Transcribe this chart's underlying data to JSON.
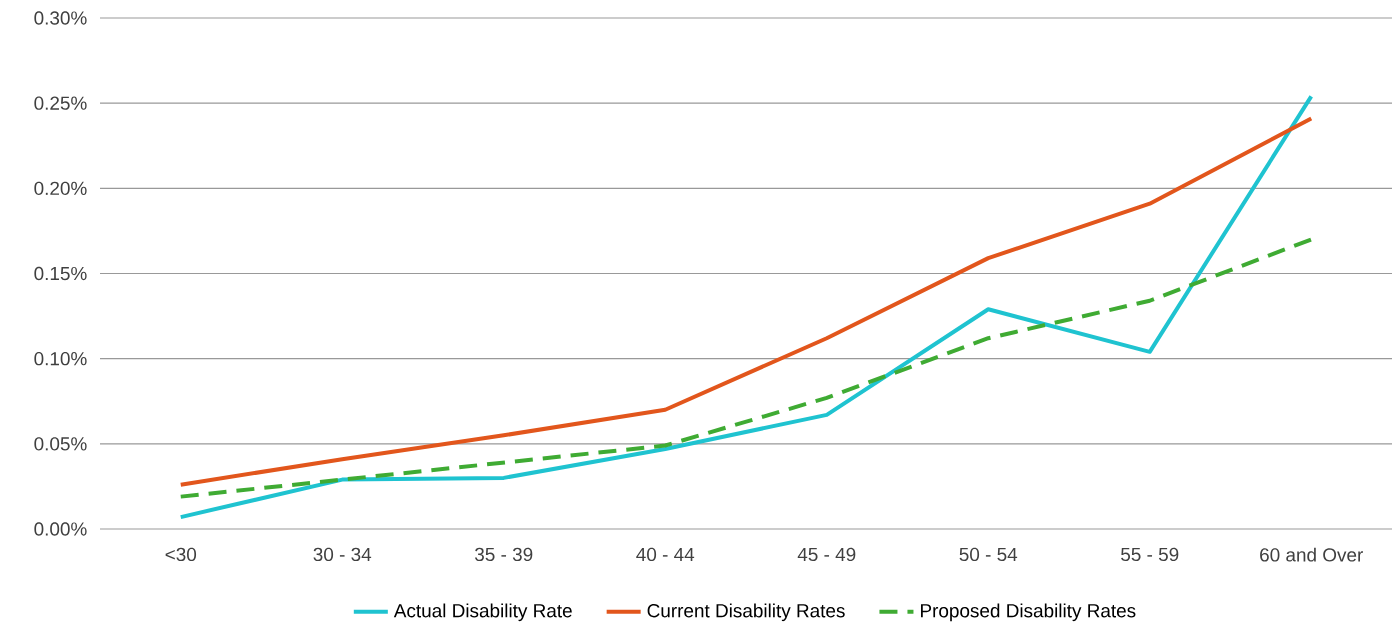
{
  "chart_data": {
    "type": "line",
    "categories": [
      "<30",
      "30 - 34",
      "35 - 39",
      "40 - 44",
      "45 - 49",
      "50 - 54",
      "55 - 59",
      "60 and Over"
    ],
    "series": [
      {
        "name": "Actual Disability Rate",
        "color": "#1fc3d0",
        "line_style": "solid",
        "values": [
          0.007,
          0.029,
          0.03,
          0.047,
          0.067,
          0.129,
          0.104,
          0.254
        ]
      },
      {
        "name": "Current Disability Rates",
        "color": "#e2561c",
        "line_style": "solid",
        "values": [
          0.026,
          0.041,
          0.055,
          0.07,
          0.112,
          0.159,
          0.191,
          0.241
        ]
      },
      {
        "name": "Proposed Disability Rates",
        "color": "#3fab33",
        "line_style": "dashed",
        "values": [
          0.019,
          0.029,
          0.039,
          0.049,
          0.077,
          0.112,
          0.134,
          0.17
        ]
      }
    ],
    "ylim": [
      0,
      0.3
    ],
    "yticks": [
      {
        "value": 0,
        "label": "0.00%"
      },
      {
        "value": 0.05,
        "label": "0.05%"
      },
      {
        "value": 0.1,
        "label": "0.10%"
      },
      {
        "value": 0.15,
        "label": "0.15%"
      },
      {
        "value": 0.2,
        "label": "0.20%"
      },
      {
        "value": 0.25,
        "label": "0.25%"
      },
      {
        "value": 0.3,
        "label": "0.30%"
      }
    ],
    "grid": "y",
    "legend": "bottom",
    "marker": "none"
  }
}
